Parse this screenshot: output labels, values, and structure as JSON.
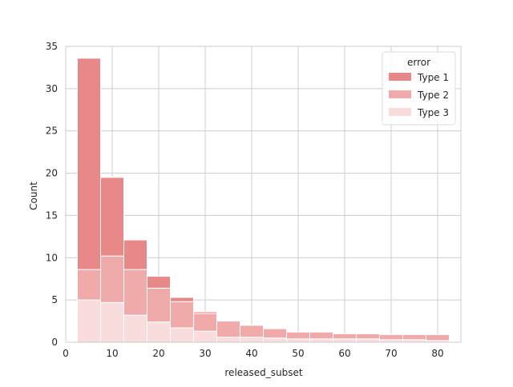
{
  "chart_data": {
    "type": "bar",
    "stacked": true,
    "title": "",
    "xlabel": "released_subset",
    "ylabel": "Count",
    "xlim": [
      0,
      85
    ],
    "ylim": [
      0,
      35
    ],
    "x_ticks": [
      0,
      10,
      20,
      30,
      40,
      50,
      60,
      70,
      80
    ],
    "y_ticks": [
      0,
      5,
      10,
      15,
      20,
      25,
      30,
      35
    ],
    "grid": true,
    "legend": {
      "title": "error",
      "position": "top-right"
    },
    "bin_width": 5,
    "bin_centers": [
      5,
      10,
      15,
      20,
      25,
      30,
      35,
      40,
      45,
      50,
      55,
      60,
      65,
      70,
      75,
      80
    ],
    "series": [
      {
        "name": "Type 3",
        "color": "#f9dcdc",
        "values": [
          5.0,
          4.7,
          3.2,
          2.4,
          1.7,
          1.3,
          0.6,
          0.6,
          0.5,
          0.4,
          0.4,
          0.4,
          0.4,
          0.3,
          0.3,
          0.2
        ]
      },
      {
        "name": "Type 2",
        "color": "#f1aaaa",
        "values": [
          3.6,
          5.5,
          5.4,
          4.0,
          3.1,
          2.1,
          1.9,
          1.4,
          1.1,
          0.8,
          0.8,
          0.6,
          0.6,
          0.6,
          0.6,
          0.7
        ]
      },
      {
        "name": "Type 1",
        "color": "#e98888",
        "values": [
          25.0,
          9.3,
          3.5,
          1.4,
          0.5,
          0.2,
          0.0,
          0.0,
          0.0,
          0.0,
          0.0,
          0.0,
          0.0,
          0.0,
          0.0,
          0.0
        ]
      }
    ],
    "legend_order": [
      "Type 1",
      "Type 2",
      "Type 3"
    ]
  }
}
